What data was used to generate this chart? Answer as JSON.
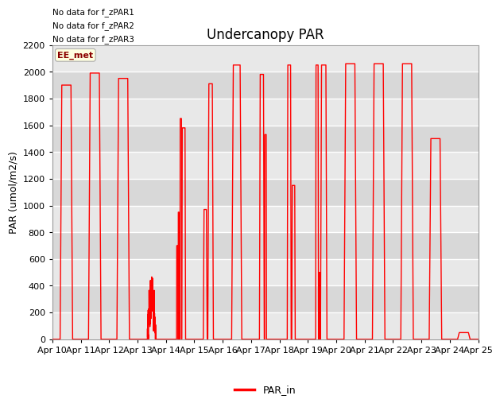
{
  "title": "Undercanopy PAR",
  "ylabel": "PAR (umol/m2/s)",
  "ylim": [
    0,
    2200
  ],
  "yticks": [
    0,
    200,
    400,
    600,
    800,
    1000,
    1200,
    1400,
    1600,
    1800,
    2000,
    2200
  ],
  "line_color": "red",
  "line_width": 1.0,
  "legend_label": "PAR_in",
  "legend_color": "red",
  "no_data_texts": [
    "No data for f_zPAR1",
    "No data for f_zPAR2",
    "No data for f_zPAR3"
  ],
  "ee_met_label": "EE_met",
  "bg_color": "#ffffff",
  "plot_bg_color": "#e8e8e8",
  "n_days": 15,
  "x_tick_labels": [
    "Apr 10",
    "Apr 11",
    "Apr 12",
    "Apr 13",
    "Apr 14",
    "Apr 15",
    "Apr 16",
    "Apr 17",
    "Apr 18",
    "Apr 19",
    "Apr 20",
    "Apr 21",
    "Apr 22",
    "Apr 23",
    "Apr 24",
    "Apr 25"
  ],
  "day_peaks": [
    1900,
    1990,
    1950,
    300,
    1650,
    1910,
    2050,
    1980,
    2050,
    2050,
    2060,
    2060,
    2060,
    1500,
    50
  ],
  "stripe_color_light": "#f0f0f0",
  "stripe_color_dark": "#e0e0e0"
}
